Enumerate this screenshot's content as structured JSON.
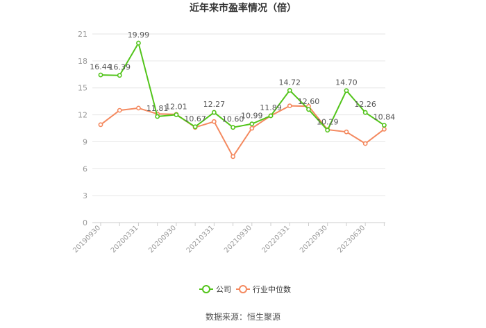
{
  "chart_data": {
    "type": "line",
    "title": "近年来市盈率情况（倍）",
    "x_tick_labels": [
      "20190930",
      "20200331",
      "20200930",
      "20210331",
      "20210930",
      "20220331",
      "20220930",
      "20230630"
    ],
    "ylim": [
      0,
      21
    ],
    "yticks": [
      "0",
      "3",
      "6",
      "9",
      "12",
      "15",
      "18",
      "21"
    ],
    "grid": true,
    "legend_position": "bottom",
    "series": [
      {
        "name": "公司",
        "color": "#52c41a",
        "values": [
          16.44,
          16.39,
          19.99,
          11.81,
          12.01,
          10.67,
          12.27,
          10.6,
          10.99,
          11.89,
          14.72,
          12.6,
          10.29,
          14.7,
          12.26,
          10.84
        ],
        "labels": [
          "16.44",
          "16.39",
          "19.99",
          "11.81",
          "12.01",
          "10.67",
          "12.27",
          "10.60",
          "10.99",
          "11.89",
          "14.72",
          "12.60",
          "10.29",
          "14.70",
          "12.26",
          "10.84"
        ]
      },
      {
        "name": "行业中位数",
        "color": "#f4895f",
        "values": [
          10.9,
          12.5,
          12.75,
          12.1,
          12.05,
          10.6,
          11.25,
          7.35,
          10.5,
          11.9,
          13.0,
          12.95,
          10.35,
          10.1,
          8.8,
          10.4
        ]
      }
    ]
  },
  "source": "数据来源：恒生聚源"
}
